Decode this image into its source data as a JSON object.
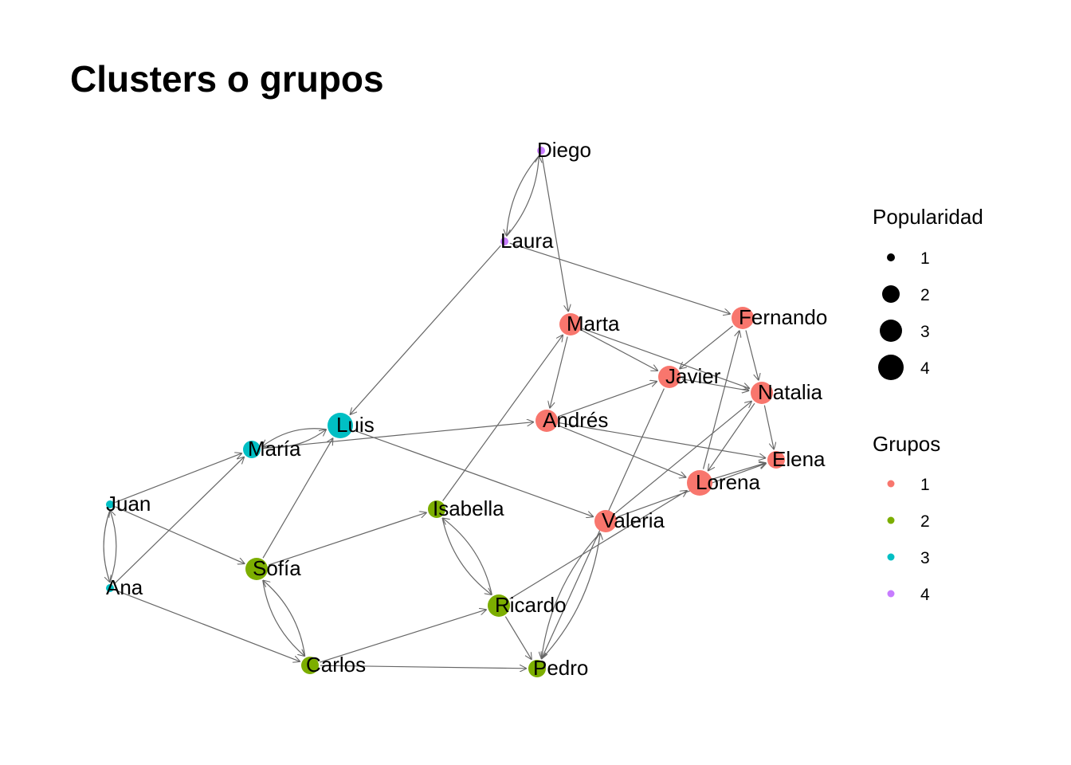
{
  "title": "Clusters o grupos",
  "colors": {
    "group_1": "#F8766D",
    "group_2": "#7CAE00",
    "group_3": "#00BFC4",
    "group_4": "#C77CFF",
    "edge": "#666666"
  },
  "nodes": [
    {
      "id": "Diego",
      "group": 4,
      "popularidad": 1
    },
    {
      "id": "Laura",
      "group": 4,
      "popularidad": 1
    },
    {
      "id": "Marta",
      "group": 1,
      "popularidad": 3
    },
    {
      "id": "Fernando",
      "group": 1,
      "popularidad": 3
    },
    {
      "id": "Javier",
      "group": 1,
      "popularidad": 3
    },
    {
      "id": "Natalia",
      "group": 1,
      "popularidad": 3
    },
    {
      "id": "Andrés",
      "group": 1,
      "popularidad": 3
    },
    {
      "id": "Luis",
      "group": 3,
      "popularidad": 4
    },
    {
      "id": "María",
      "group": 3,
      "popularidad": 2
    },
    {
      "id": "Elena",
      "group": 1,
      "popularidad": 2
    },
    {
      "id": "Lorena",
      "group": 1,
      "popularidad": 4
    },
    {
      "id": "Juan",
      "group": 3,
      "popularidad": 1
    },
    {
      "id": "Isabella",
      "group": 2,
      "popularidad": 2
    },
    {
      "id": "Valeria",
      "group": 1,
      "popularidad": 3
    },
    {
      "id": "Sofía",
      "group": 2,
      "popularidad": 3
    },
    {
      "id": "Ana",
      "group": 3,
      "popularidad": 1
    },
    {
      "id": "Ricardo",
      "group": 2,
      "popularidad": 3
    },
    {
      "id": "Carlos",
      "group": 2,
      "popularidad": 2
    },
    {
      "id": "Pedro",
      "group": 2,
      "popularidad": 2
    }
  ],
  "edges": [
    [
      "Diego",
      "Laura"
    ],
    [
      "Laura",
      "Diego"
    ],
    [
      "Diego",
      "Marta"
    ],
    [
      "Laura",
      "Fernando"
    ],
    [
      "Laura",
      "Luis"
    ],
    [
      "Marta",
      "Javier"
    ],
    [
      "Marta",
      "Natalia"
    ],
    [
      "Marta",
      "Andrés"
    ],
    [
      "Isabella",
      "Marta"
    ],
    [
      "Fernando",
      "Javier"
    ],
    [
      "Fernando",
      "Natalia"
    ],
    [
      "Lorena",
      "Fernando"
    ],
    [
      "Javier",
      "Natalia"
    ],
    [
      "Andrés",
      "Javier"
    ],
    [
      "Javier",
      "Pedro"
    ],
    [
      "Natalia",
      "Elena"
    ],
    [
      "Natalia",
      "Lorena"
    ],
    [
      "Valeria",
      "Natalia"
    ],
    [
      "Andrés",
      "Elena"
    ],
    [
      "Andrés",
      "Lorena"
    ],
    [
      "María",
      "Andrés"
    ],
    [
      "Lorena",
      "Elena"
    ],
    [
      "Valeria",
      "Elena"
    ],
    [
      "Luis",
      "María"
    ],
    [
      "María",
      "Luis"
    ],
    [
      "Luis",
      "Valeria"
    ],
    [
      "Sofía",
      "Luis"
    ],
    [
      "Juan",
      "María"
    ],
    [
      "Ana",
      "María"
    ],
    [
      "Juan",
      "Ana"
    ],
    [
      "Ana",
      "Juan"
    ],
    [
      "Juan",
      "Sofía"
    ],
    [
      "Sofía",
      "Isabella"
    ],
    [
      "Sofía",
      "Carlos"
    ],
    [
      "Carlos",
      "Sofía"
    ],
    [
      "Ana",
      "Carlos"
    ],
    [
      "Carlos",
      "Ricardo"
    ],
    [
      "Carlos",
      "Pedro"
    ],
    [
      "Isabella",
      "Ricardo"
    ],
    [
      "Ricardo",
      "Isabella"
    ],
    [
      "Ricardo",
      "Pedro"
    ],
    [
      "Ricardo",
      "Lorena"
    ],
    [
      "Valeria",
      "Pedro"
    ],
    [
      "Pedro",
      "Valeria"
    ]
  ],
  "legend": {
    "size": {
      "title": "Popularidad",
      "entries": [
        "1",
        "2",
        "3",
        "4"
      ]
    },
    "color": {
      "title": "Grupos",
      "entries": [
        "1",
        "2",
        "3",
        "4"
      ]
    }
  }
}
